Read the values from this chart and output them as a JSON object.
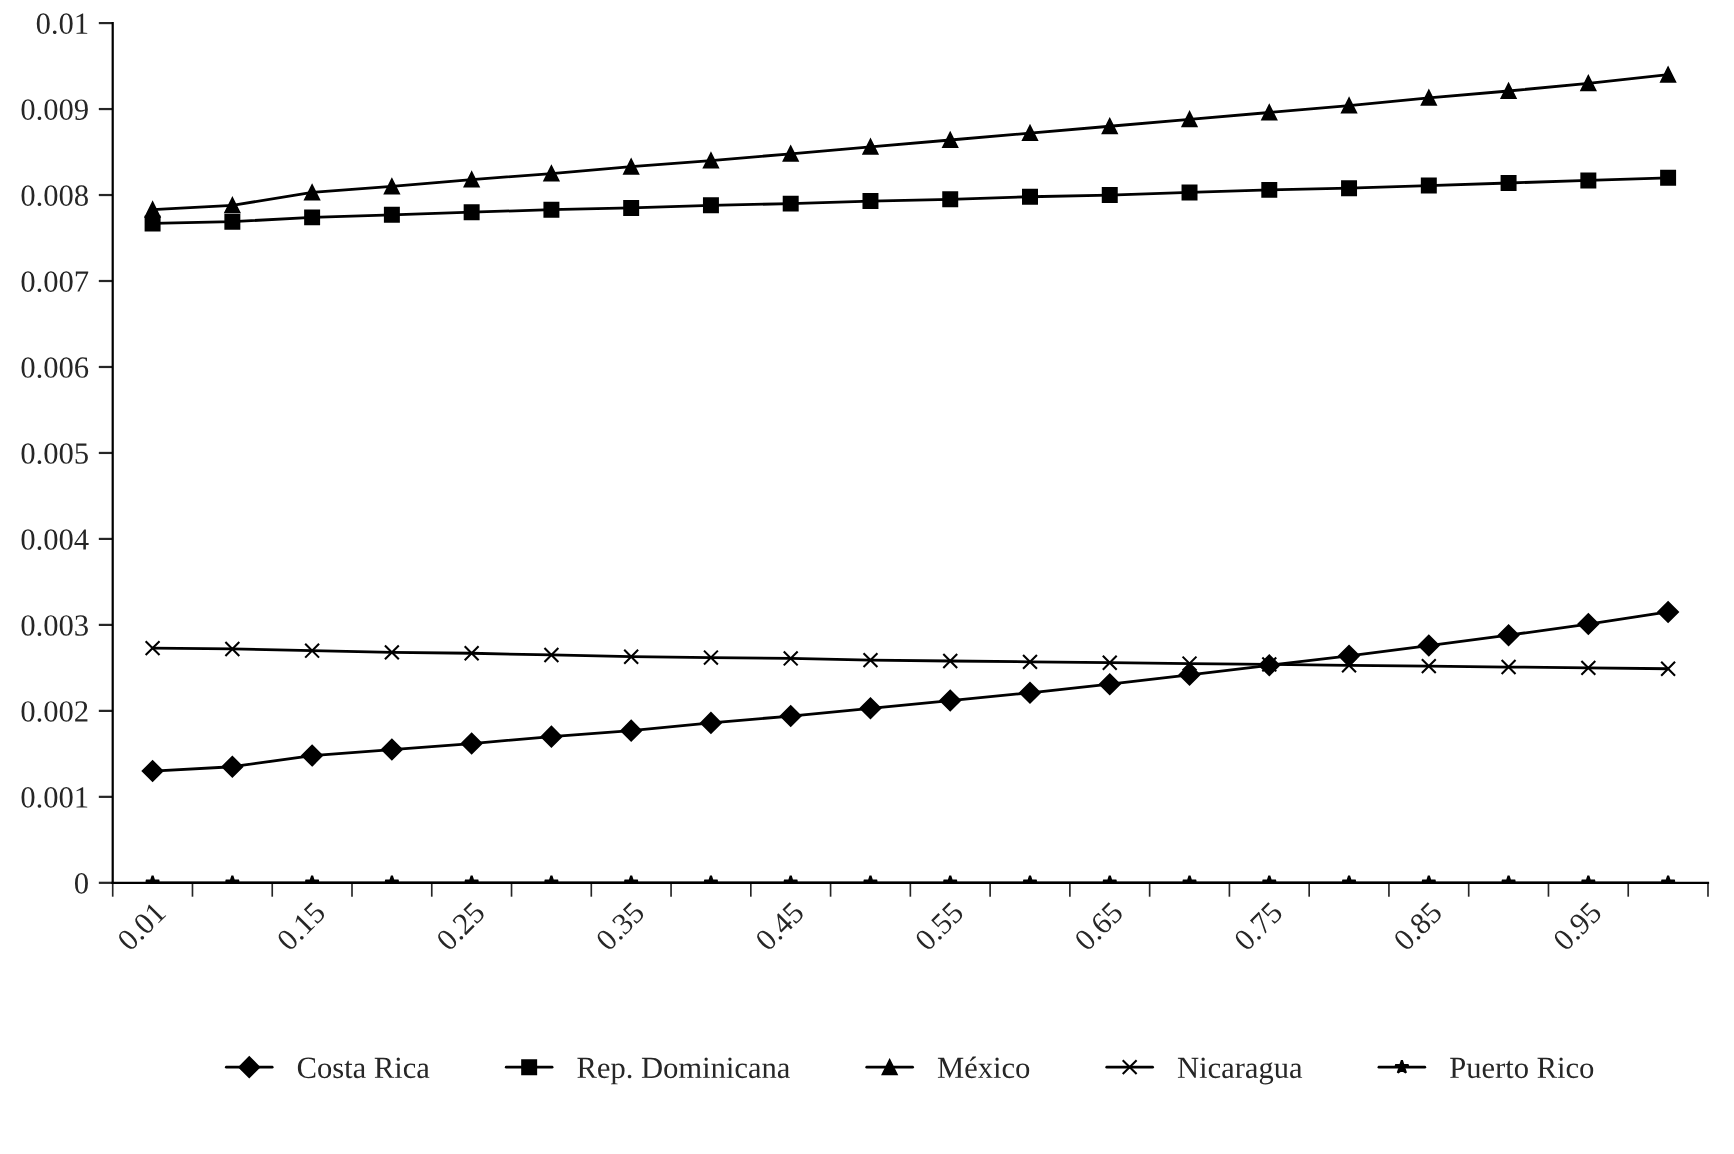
{
  "chart_data": {
    "type": "line",
    "categories": [
      "0.01",
      null,
      "0.15",
      null,
      "0.25",
      null,
      "0.35",
      null,
      "0.45",
      null,
      "0.55",
      null,
      "0.65",
      null,
      "0.75",
      null,
      "0.85",
      null,
      "0.95",
      null
    ],
    "series": [
      {
        "name": "Costa Rica",
        "color": "#000000",
        "marker": "diamond",
        "values": [
          0.0013,
          0.00135,
          0.00148,
          0.00155,
          0.00162,
          0.0017,
          0.00177,
          0.00186,
          0.00194,
          0.00203,
          0.00212,
          0.00221,
          0.00231,
          0.00242,
          0.00253,
          0.00264,
          0.00276,
          0.00288,
          0.00301,
          0.00315
        ]
      },
      {
        "name": "Rep. Dominicana",
        "color": "#000000",
        "marker": "square",
        "values": [
          0.00767,
          0.00769,
          0.00774,
          0.00777,
          0.0078,
          0.00783,
          0.00785,
          0.00788,
          0.0079,
          0.00793,
          0.00795,
          0.00798,
          0.008,
          0.00803,
          0.00806,
          0.00808,
          0.00811,
          0.00814,
          0.00817,
          0.0082
        ]
      },
      {
        "name": "México",
        "color": "#000000",
        "marker": "triangle",
        "values": [
          0.00783,
          0.00788,
          0.00803,
          0.0081,
          0.00818,
          0.00825,
          0.00833,
          0.0084,
          0.00848,
          0.00856,
          0.00864,
          0.00872,
          0.0088,
          0.00888,
          0.00896,
          0.00904,
          0.00913,
          0.00921,
          0.0093,
          0.0094
        ]
      },
      {
        "name": "Nicaragua",
        "color": "#000000",
        "marker": "cross",
        "values": [
          0.00273,
          0.00272,
          0.0027,
          0.00268,
          0.00267,
          0.00265,
          0.00263,
          0.00262,
          0.00261,
          0.00259,
          0.00258,
          0.00257,
          0.00256,
          0.00255,
          0.00254,
          0.00253,
          0.00252,
          0.00251,
          0.0025,
          0.00249
        ]
      },
      {
        "name": "Puerto Rico",
        "color": "#000000",
        "marker": "star",
        "values": [
          0,
          0,
          0,
          0,
          0,
          0,
          0,
          0,
          0,
          0,
          0,
          0,
          0,
          0,
          0,
          0,
          0,
          0,
          0,
          0
        ]
      }
    ],
    "ylim": [
      0,
      0.01
    ],
    "yticks": [
      0,
      0.001,
      0.002,
      0.003,
      0.004,
      0.005,
      0.006,
      0.007,
      0.008,
      0.009,
      0.01
    ],
    "grid": false,
    "legend": "bottom",
    "line_style": "solid"
  }
}
